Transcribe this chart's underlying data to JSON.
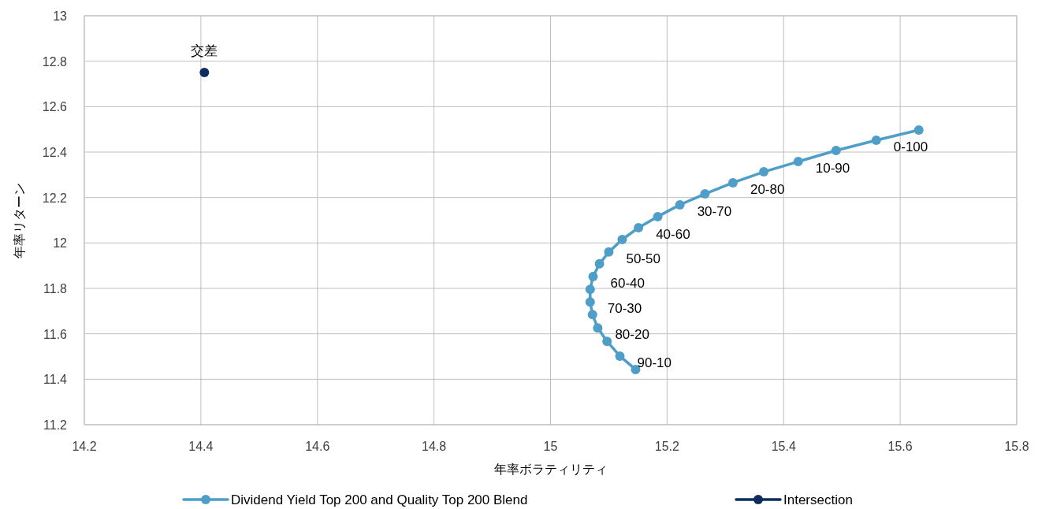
{
  "chart_data": {
    "type": "line",
    "xlabel": "年率ボラティリティ",
    "ylabel": "年率リターン",
    "xlim": [
      14.2,
      15.8
    ],
    "xticks": [
      14.2,
      14.4,
      14.6,
      14.8,
      15,
      15.2,
      15.4,
      15.6,
      15.8
    ],
    "ylim": [
      11.2,
      13
    ],
    "yticks": [
      11.2,
      11.4,
      11.6,
      11.8,
      12,
      12.2,
      12.4,
      12.6,
      12.8,
      13
    ],
    "grid": true,
    "legend": "bottom",
    "marker": "circle",
    "series": [
      {
        "name": "Dividend Yield Top 200 and Quality Top 200 Blend",
        "color": "#4e9ec8",
        "x": [
          15.632,
          15.559,
          15.49,
          15.425,
          15.366,
          15.313,
          15.265,
          15.222,
          15.184,
          15.151,
          15.123,
          15.1,
          15.084,
          15.073,
          15.068,
          15.068,
          15.072,
          15.081,
          15.097,
          15.119,
          15.146
        ],
        "values": [
          12.497,
          12.452,
          12.407,
          12.358,
          12.313,
          12.265,
          12.216,
          12.168,
          12.116,
          12.067,
          12.015,
          11.96,
          11.908,
          11.852,
          11.796,
          11.74,
          11.685,
          11.626,
          11.567,
          11.502,
          11.443
        ],
        "value_labels": [
          null,
          "0-100",
          null,
          "10-90",
          null,
          "20-80",
          null,
          "30-70",
          null,
          "40-60",
          null,
          "50-50",
          null,
          "60-40",
          null,
          "70-30",
          null,
          "80-20",
          null,
          "90-10",
          null
        ]
      },
      {
        "name": "Intersection",
        "color": "#0c2d5e",
        "type": "scatter",
        "x": [
          14.406
        ],
        "values": [
          12.75
        ],
        "value_labels": [
          "交差"
        ]
      }
    ]
  }
}
